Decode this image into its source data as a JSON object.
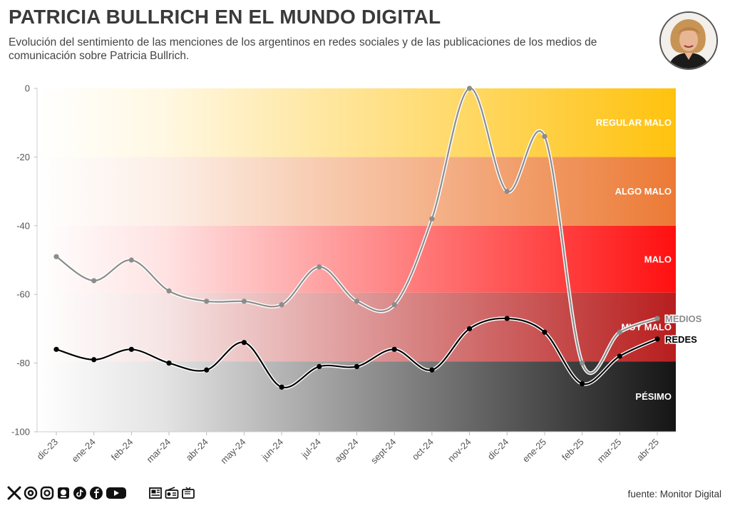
{
  "header": {
    "title": "PATRICIA BULLRICH EN EL MUNDO DIGITAL",
    "subtitle": "Evolución del sentimiento de las menciones de los argentinos en redes sociales y de las publicaciones de los medios de comunicación sobre Patricia Bullrich."
  },
  "footer": {
    "source": "fuente: Monitor Digital",
    "social_icons": [
      "x-icon",
      "threads-icon",
      "instagram-icon",
      "news-icon",
      "tiktok-icon",
      "facebook-icon",
      "youtube-icon"
    ],
    "media_icons": [
      "newspaper-icon",
      "radio-icon",
      "tv-icon"
    ]
  },
  "chart_data": {
    "type": "line",
    "categories": [
      "dic-23",
      "ene-24",
      "feb-24",
      "mar-24",
      "abr-24",
      "may-24",
      "jun-24",
      "jul-24",
      "ago-24",
      "sept-24",
      "oct-24",
      "nov-24",
      "dic-24",
      "ene-25",
      "feb-25",
      "mar-25",
      "abr-25"
    ],
    "series": [
      {
        "name": "MEDIOS",
        "color": "#8c8c8c",
        "values": [
          -49,
          -56,
          -50,
          -59,
          -62,
          -62,
          -63,
          -52,
          -62,
          -63,
          -38,
          0,
          -30,
          -14,
          -80,
          -71,
          -67
        ]
      },
      {
        "name": "REDES",
        "color": "#000000",
        "values": [
          -76,
          -79,
          -76,
          -80,
          -82,
          -74,
          -87,
          -81,
          -81,
          -76,
          -82,
          -70,
          -67,
          -71,
          -86,
          -78,
          -73
        ]
      }
    ],
    "bands": [
      {
        "label": "REGULAR MALO",
        "from": 0,
        "to": -20,
        "color": "#ffc20e"
      },
      {
        "label": "ALGO MALO",
        "from": -20,
        "to": -40,
        "color": "#ec7a35"
      },
      {
        "label": "MALO",
        "from": -40,
        "to": -59.5,
        "color": "#ff1010"
      },
      {
        "label": "MUY MALO",
        "from": -59.5,
        "to": -79.5,
        "color": "#b81e1e"
      },
      {
        "label": "PÉSIMO",
        "from": -79.5,
        "to": -100,
        "color": "#151515"
      }
    ],
    "yticks": [
      0,
      -20,
      -40,
      -60,
      -80,
      -100
    ],
    "ylim": [
      -100,
      0
    ],
    "grid": false,
    "xlabel": "",
    "ylabel": ""
  }
}
